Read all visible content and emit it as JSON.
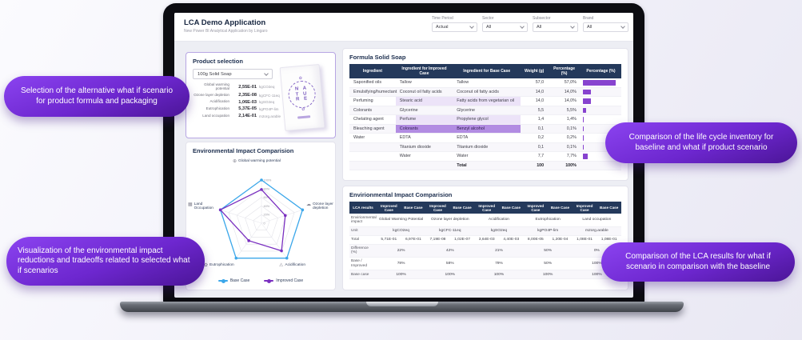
{
  "callouts": {
    "top_left": "Selection of the alternative what if scenario for product formula and packaging",
    "bottom_left": "Visualization of the environmental impact reductions and tradeoffs related to selected what if scenarios",
    "right_middle": "Comparison of the life cycle inventory for baseline and what if product scenario",
    "right_bottom": "Comparison of the LCA results for what if scenario in comparison with the baseline"
  },
  "app": {
    "title": "LCA Demo Application",
    "subtitle": "New Power BI Analytical Application by Lingaro",
    "filters": [
      {
        "label": "Time Period",
        "value": "Actual"
      },
      {
        "label": "Sector",
        "value": "All"
      },
      {
        "label": "Subsector",
        "value": "All"
      },
      {
        "label": "Brand",
        "value": "All"
      }
    ]
  },
  "product_selection": {
    "title": "Product selection",
    "dropdown_value": "100g Solid Soap",
    "metrics": [
      {
        "label": "Global warming potential",
        "value": "2,55E-01",
        "unit": "kgCO2eq"
      },
      {
        "label": "Ozone layer depletion",
        "value": "2,35E-08",
        "unit": "kgCFC-11eq"
      },
      {
        "label": "Acidification",
        "value": "1,06E-03",
        "unit": "kgSO2eq"
      },
      {
        "label": "Eutrophication",
        "value": "5,37E-05",
        "unit": "kgPO4P-lim"
      },
      {
        "label": "Land occupation",
        "value": "2,14E-01",
        "unit": "m2org.arable"
      }
    ],
    "package_lines": [
      "N A",
      "T U",
      "R E"
    ],
    "package_leaf": "✿"
  },
  "formula_table": {
    "title": "Formula Solid Soap",
    "columns": [
      "Ingredient",
      "Ingredient for Improved Case",
      "Ingredient for Base Case",
      "Weight (g)",
      "Percentage (%)",
      "Percentage (%)"
    ],
    "rows": [
      {
        "ingredient": "Saponified oils",
        "improved": "Tallow",
        "base": "Tallow",
        "weight": "57,0",
        "percentage": "57,0%",
        "pct": 57,
        "hl": "none"
      },
      {
        "ingredient": "Emulsifying/humectant",
        "improved": "Coconut oil fatty acids",
        "base": "Coconut oil fatty acids",
        "weight": "14,0",
        "percentage": "14,0%",
        "pct": 14,
        "hl": "none"
      },
      {
        "ingredient": "Perfuming",
        "improved": "Stearic acid",
        "base": "Fatty acids from vegetarian oil",
        "weight": "14,0",
        "percentage": "14,0%",
        "pct": 14,
        "hl": "light"
      },
      {
        "ingredient": "Colorants",
        "improved": "Glycerine",
        "base": "Glycerine",
        "weight": "5,5",
        "percentage": "5,5%",
        "pct": 5.5,
        "hl": "none"
      },
      {
        "ingredient": "Chelating agent",
        "improved": "Perfume",
        "base": "Propylene glycol",
        "weight": "1,4",
        "percentage": "1,4%",
        "pct": 1.4,
        "hl": "light"
      },
      {
        "ingredient": "Bleaching agent",
        "improved": "Colorants",
        "base": "Benzyl alcohol",
        "weight": "0,1",
        "percentage": "0,1%",
        "pct": 0.1,
        "hl": "strong"
      },
      {
        "ingredient": "Water",
        "improved": "EDTA",
        "base": "EDTA",
        "weight": "0,2",
        "percentage": "0,2%",
        "pct": 0.2,
        "hl": "none"
      },
      {
        "ingredient": "",
        "improved": "Titanium dioxide",
        "base": "Titanium dioxide",
        "weight": "0,1",
        "percentage": "0,1%",
        "pct": 0.1,
        "hl": "none"
      },
      {
        "ingredient": "",
        "improved": "Water",
        "base": "Water",
        "weight": "7,7",
        "percentage": "7,7%",
        "pct": 7.7,
        "hl": "none"
      }
    ],
    "total": {
      "label": "Total",
      "weight": "100",
      "percentage": "100%"
    }
  },
  "chart_data": {
    "type": "radar",
    "title": "Environmental Impact Comparision",
    "axes": [
      "Global warming potential",
      "Ozone layer depletion",
      "Acidification",
      "Eutrophication",
      "Land Occupation"
    ],
    "axis_icons": [
      "globe-icon",
      "ozone-icon",
      "acidification-icon",
      "eutrophication-icon",
      "land-icon"
    ],
    "axis_icon_glyphs": [
      "⊕",
      "☁",
      "⚠",
      "✿",
      "▦"
    ],
    "tick_labels": [
      "0",
      "20%",
      "40%",
      "60%",
      "80%",
      "100%"
    ],
    "max": 100,
    "grid": true,
    "legend_position": "bottom",
    "series": [
      {
        "name": "Base Case",
        "color": "#3ba7ea",
        "values": [
          100,
          100,
          100,
          100,
          100
        ]
      },
      {
        "name": "Improved Case",
        "color": "#7a2fc0",
        "values": [
          78,
          58,
          79,
          50,
          100
        ]
      }
    ]
  },
  "lca_table": {
    "title": "Envirionmental Impact Comparision",
    "first_col_header": "LCA results",
    "pair_headers": [
      "Improved Case",
      "Base Case"
    ],
    "row_labels": {
      "impact": "Envirionmental impact",
      "unit": "Unit",
      "total": "Total",
      "difference": "Difference (%)",
      "base_improved": "Base / Improved",
      "base_case": "Base case"
    },
    "categories": [
      {
        "name": "Global Warming Potential",
        "unit": "kgCO2eq",
        "improved_total": "5,71E-01",
        "base_total": "6,97E-01",
        "difference": "22%",
        "base_improved": "78%",
        "base_case": "100%"
      },
      {
        "name": "Ozone layer depletion",
        "unit": "kgCFC-11eq",
        "improved_total": "7,19E-08",
        "base_total": "1,02E-07",
        "difference": "42%",
        "base_improved": "58%",
        "base_case": "100%"
      },
      {
        "name": "Acidification",
        "unit": "kgSO2eq",
        "improved_total": "3,64E-03",
        "base_total": "4,40E-03",
        "difference": "21%",
        "base_improved": "79%",
        "base_case": "100%"
      },
      {
        "name": "Eutrophication",
        "unit": "kgPO4P-lim",
        "improved_total": "8,00E-05",
        "base_total": "1,20E-04",
        "difference": "50%",
        "base_improved": "50%",
        "base_case": "100%"
      },
      {
        "name": "Land occupation",
        "unit": "m2org.arable",
        "improved_total": "1,08E-01",
        "base_total": "1,08E-01",
        "difference": "0%",
        "base_improved": "100%",
        "base_case": "100%"
      }
    ]
  }
}
